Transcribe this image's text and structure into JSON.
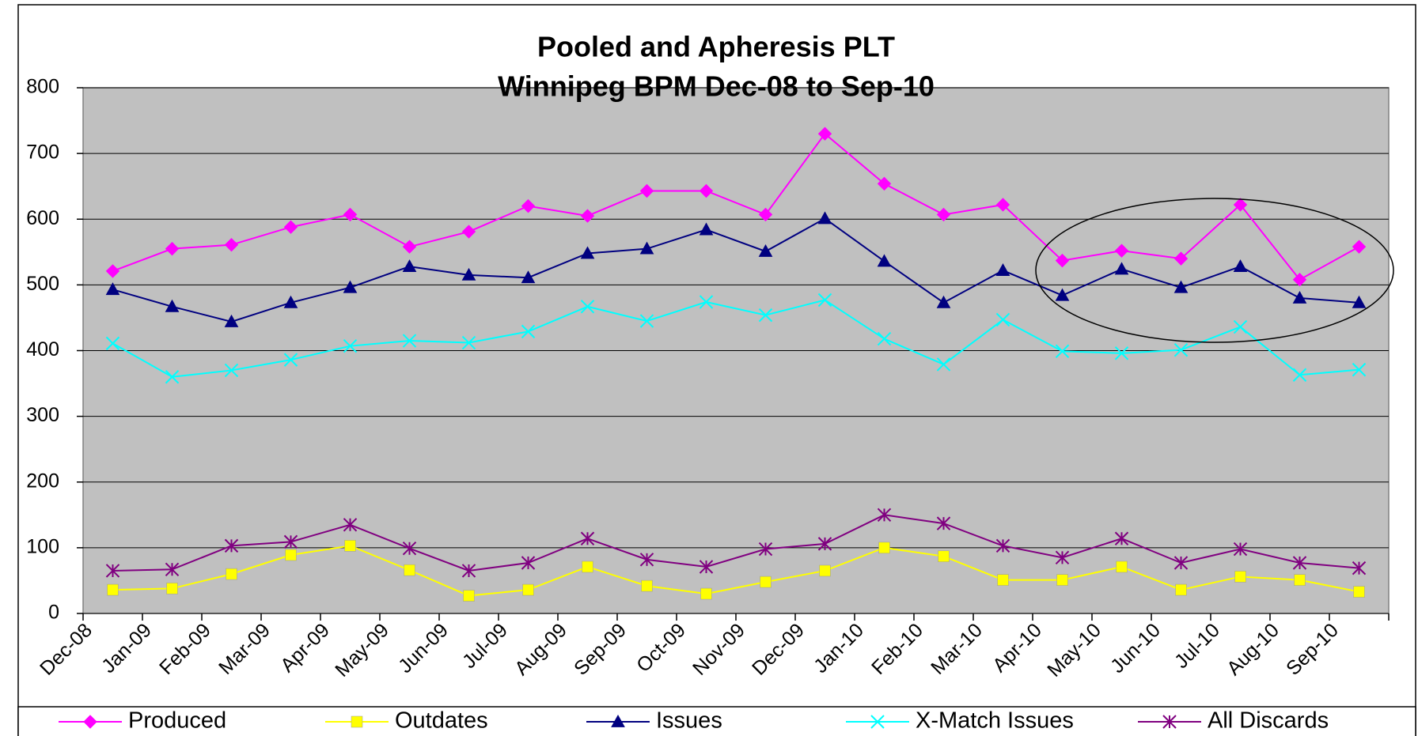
{
  "chart_data": {
    "type": "line",
    "title": "Pooled and Apheresis PLT",
    "subtitle": "Winnipeg BPM  Dec-08 to Sep-10",
    "categories": [
      "Dec-08",
      "Jan-09",
      "Feb-09",
      "Mar-09",
      "Apr-09",
      "May-09",
      "Jun-09",
      "Jul-09",
      "Aug-09",
      "Sep-09",
      "Oct-09",
      "Nov-09",
      "Dec-09",
      "Jan-10",
      "Feb-10",
      "Mar-10",
      "Apr-10",
      "May-10",
      "Jun-10",
      "Jul-10",
      "Aug-10",
      "Sep-10"
    ],
    "ylim": [
      0,
      800
    ],
    "yticks": [
      0,
      100,
      200,
      300,
      400,
      500,
      600,
      700,
      800
    ],
    "grid": true,
    "legend": "bottom",
    "series": [
      {
        "name": "Produced",
        "color": "#ff00ff",
        "marker": "diamond",
        "values": [
          521,
          555,
          561,
          588,
          607,
          558,
          581,
          620,
          605,
          643,
          643,
          607,
          730,
          654,
          607,
          622,
          537,
          552,
          540,
          622,
          508,
          558
        ]
      },
      {
        "name": "Outdates",
        "color": "#ffff00",
        "marker": "square",
        "values": [
          36,
          38,
          60,
          89,
          103,
          66,
          27,
          36,
          71,
          42,
          30,
          48,
          65,
          100,
          87,
          51,
          51,
          71,
          36,
          56,
          51,
          33
        ]
      },
      {
        "name": "Issues",
        "color": "#000080",
        "marker": "triangle",
        "values": [
          493,
          467,
          444,
          473,
          496,
          528,
          515,
          511,
          548,
          555,
          584,
          551,
          601,
          536,
          473,
          522,
          484,
          524,
          496,
          528,
          480,
          473
        ]
      },
      {
        "name": "X-Match Issues",
        "color": "#00ffff",
        "marker": "x",
        "values": [
          411,
          360,
          370,
          386,
          407,
          415,
          412,
          429,
          467,
          445,
          474,
          454,
          477,
          418,
          379,
          447,
          399,
          396,
          401,
          436,
          363,
          371
        ]
      },
      {
        "name": "All Discards",
        "color": "#800080",
        "marker": "star",
        "values": [
          65,
          67,
          103,
          109,
          135,
          99,
          65,
          77,
          114,
          82,
          71,
          98,
          106,
          150,
          137,
          103,
          85,
          114,
          77,
          98,
          77,
          69
        ]
      }
    ]
  }
}
